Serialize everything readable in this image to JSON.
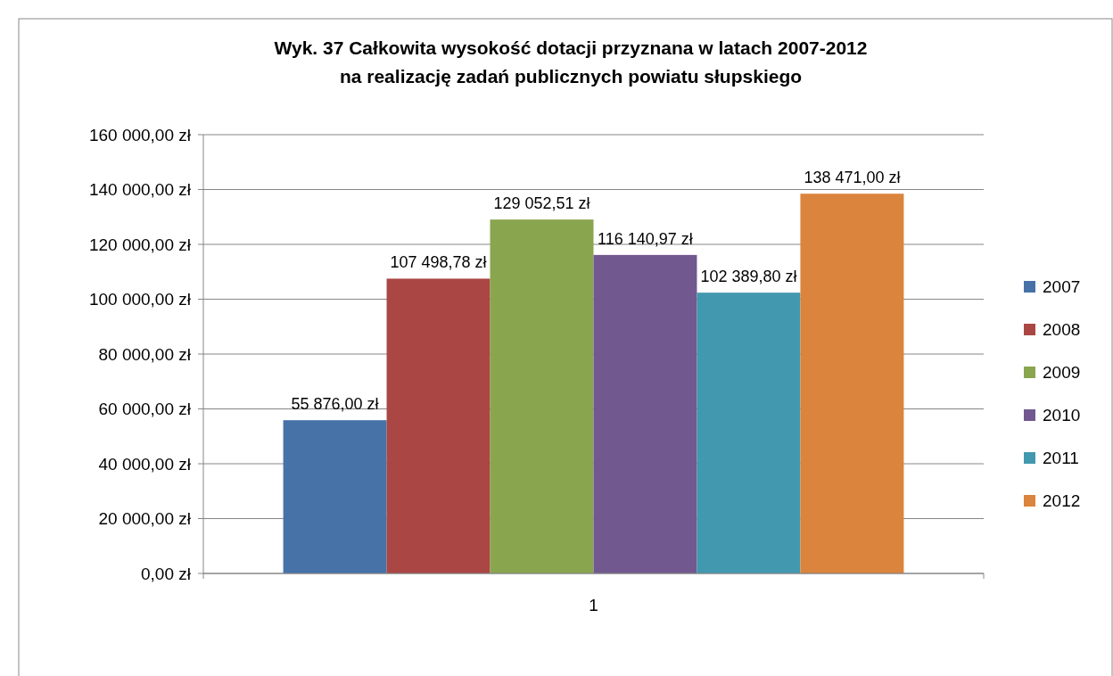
{
  "chart_data": {
    "type": "bar",
    "title": "Wyk. 37 Całkowita wysokość dotacji przyznana w latach 2007-2012\nna realizację zadań publicznych powiatu słupskiego",
    "categories": [
      "1"
    ],
    "series": [
      {
        "name": "2007",
        "color": "#4672a8",
        "values": [
          55876
        ],
        "value_labels": [
          "55 876,00 zł"
        ]
      },
      {
        "name": "2008",
        "color": "#aa4644",
        "values": [
          107498.78
        ],
        "value_labels": [
          "107 498,78 zł"
        ]
      },
      {
        "name": "2009",
        "color": "#89a54e",
        "values": [
          129052.51
        ],
        "value_labels": [
          "129 052,51 zł"
        ]
      },
      {
        "name": "2010",
        "color": "#71588f",
        "values": [
          116140.97
        ],
        "value_labels": [
          "116 140,97 zł"
        ]
      },
      {
        "name": "2011",
        "color": "#4298af",
        "values": [
          102389.8
        ],
        "value_labels": [
          "102 389,80 zł"
        ]
      },
      {
        "name": "2012",
        "color": "#db843d",
        "values": [
          138471
        ],
        "value_labels": [
          "138 471,00 zł"
        ]
      }
    ],
    "ylim": [
      0,
      160000
    ],
    "yticks": [
      {
        "value": 0,
        "label": "0,00 zł"
      },
      {
        "value": 20000,
        "label": "20 000,00 zł"
      },
      {
        "value": 40000,
        "label": "40 000,00 zł"
      },
      {
        "value": 60000,
        "label": "60 000,00 zł"
      },
      {
        "value": 80000,
        "label": "80 000,00 zł"
      },
      {
        "value": 100000,
        "label": "100 000,00 zł"
      },
      {
        "value": 120000,
        "label": "120 000,00 zł"
      },
      {
        "value": 140000,
        "label": "140 000,00 zł"
      },
      {
        "value": 160000,
        "label": "160 000,00 zł"
      }
    ],
    "grid": "y",
    "legend": "right"
  }
}
